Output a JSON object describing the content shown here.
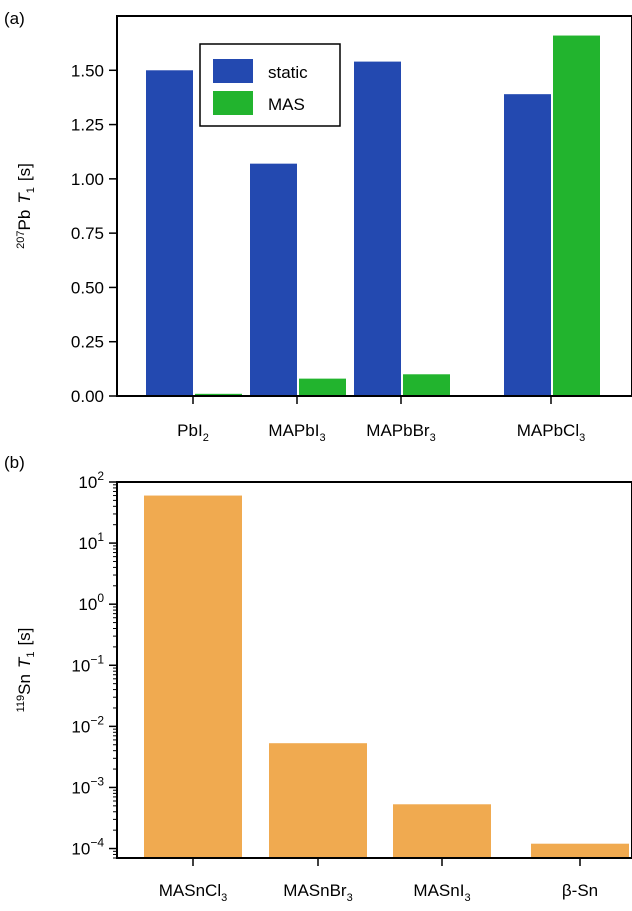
{
  "colors": {
    "static": "#2349b0",
    "mas": "#22b42e",
    "tin": "#f0aa50",
    "axis": "#000000"
  },
  "chart_data": [
    {
      "panel": "(a)",
      "type": "bar",
      "categories": [
        "PbI",
        "MAPbI",
        "MAPbBr",
        "MAPbCl"
      ],
      "category_subscripts": [
        "2",
        "3",
        "3",
        "3"
      ],
      "series": [
        {
          "name": "static",
          "values": [
            1.5,
            1.07,
            1.54,
            1.39
          ]
        },
        {
          "name": "MAS",
          "values": [
            0.01,
            0.08,
            0.1,
            1.66
          ]
        }
      ],
      "ylabel": {
        "sup": "207",
        "nucleus": "Pb",
        "symbol": "T",
        "sub": "1",
        "unit": "[s]"
      },
      "ylim": [
        0,
        1.75
      ],
      "yticks": [
        0.0,
        0.25,
        0.5,
        0.75,
        1.0,
        1.25,
        1.5
      ],
      "ytick_labels": [
        "0.00",
        "0.25",
        "0.50",
        "0.75",
        "1.00",
        "1.25",
        "1.50"
      ],
      "legend": "top-center",
      "grid": false
    },
    {
      "panel": "(b)",
      "type": "bar",
      "scale": "log",
      "categories": [
        "MASnCl",
        "MASnBr",
        "MASnI",
        "β-Sn"
      ],
      "category_subscripts": [
        "3",
        "3",
        "3",
        ""
      ],
      "series": [
        {
          "values": [
            60,
            0.0053,
            0.00053,
            0.00012
          ]
        }
      ],
      "ylabel": {
        "sup": "119",
        "nucleus": "Sn",
        "symbol": "T",
        "sub": "1",
        "unit": "[s]"
      },
      "ylim": [
        7e-05,
        100
      ],
      "yticks_exp": [
        2,
        1,
        0,
        -1,
        -2,
        -3,
        -4
      ],
      "ytick_base": "10",
      "ytick_exponents": [
        "2",
        "1",
        "0",
        "−1",
        "−2",
        "−3",
        "−4"
      ],
      "grid": false
    }
  ]
}
